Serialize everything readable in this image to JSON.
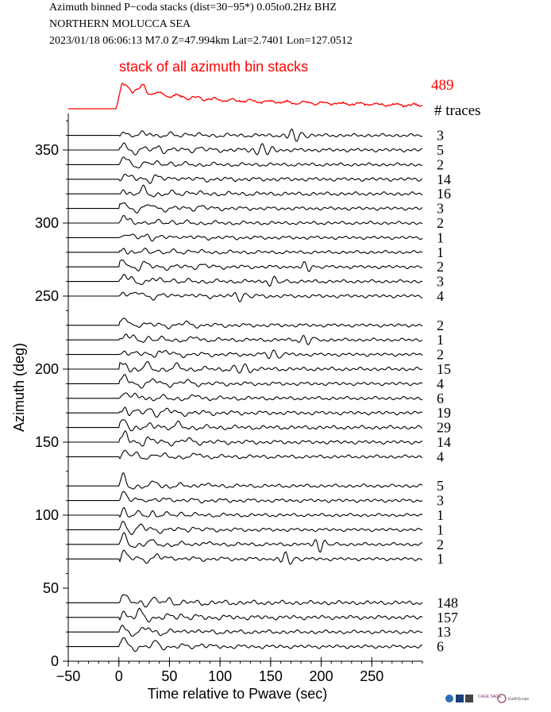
{
  "header": {
    "line1": "Azimuth binned P−coda stacks (dist=30−95*)  0.05to0.2Hz  BHZ",
    "line2": "NORTHERN MOLUCCA SEA",
    "line3": "2023/01/18  06:06:13  M7.0  Z=47.994km Lat=2.7401 Lon=127.0512"
  },
  "chart_data": {
    "type": "line",
    "title": "stack of all azimuth bin stacks",
    "xlabel": "Time relative to Pwave (sec)",
    "ylabel": "Azimuth (deg)",
    "xlim": [
      -50,
      300
    ],
    "ylim": [
      0,
      375
    ],
    "x_ticks": [
      -50,
      0,
      50,
      100,
      150,
      200,
      250
    ],
    "y_ticks": [
      0,
      50,
      100,
      150,
      200,
      250,
      300,
      350
    ],
    "grid": false,
    "colors": {
      "stack": "#ff0000",
      "traces": "#000000"
    },
    "stack": {
      "trace_count": 489,
      "label": "489"
    },
    "count_header": "# traces",
    "series": [
      {
        "azimuth": 360,
        "traces": 3
      },
      {
        "azimuth": 350,
        "traces": 5
      },
      {
        "azimuth": 340,
        "traces": 2
      },
      {
        "azimuth": 330,
        "traces": 14
      },
      {
        "azimuth": 320,
        "traces": 16
      },
      {
        "azimuth": 310,
        "traces": 3
      },
      {
        "azimuth": 300,
        "traces": 2
      },
      {
        "azimuth": 290,
        "traces": 1
      },
      {
        "azimuth": 280,
        "traces": 1
      },
      {
        "azimuth": 270,
        "traces": 2
      },
      {
        "azimuth": 260,
        "traces": 3
      },
      {
        "azimuth": 250,
        "traces": 4
      },
      {
        "azimuth": 230,
        "traces": 2
      },
      {
        "azimuth": 220,
        "traces": 1
      },
      {
        "azimuth": 210,
        "traces": 2
      },
      {
        "azimuth": 200,
        "traces": 15
      },
      {
        "azimuth": 190,
        "traces": 4
      },
      {
        "azimuth": 180,
        "traces": 6
      },
      {
        "azimuth": 170,
        "traces": 19
      },
      {
        "azimuth": 160,
        "traces": 29
      },
      {
        "azimuth": 150,
        "traces": 14
      },
      {
        "azimuth": 140,
        "traces": 4
      },
      {
        "azimuth": 120,
        "traces": 5
      },
      {
        "azimuth": 110,
        "traces": 3
      },
      {
        "azimuth": 100,
        "traces": 1
      },
      {
        "azimuth": 90,
        "traces": 1
      },
      {
        "azimuth": 80,
        "traces": 2
      },
      {
        "azimuth": 70,
        "traces": 1
      },
      {
        "azimuth": 40,
        "traces": 148
      },
      {
        "azimuth": 30,
        "traces": 157
      },
      {
        "azimuth": 20,
        "traces": 13
      },
      {
        "azimuth": 10,
        "traces": 6
      }
    ]
  },
  "logos": [
    "CAGE SAGE",
    "EarthScope"
  ]
}
